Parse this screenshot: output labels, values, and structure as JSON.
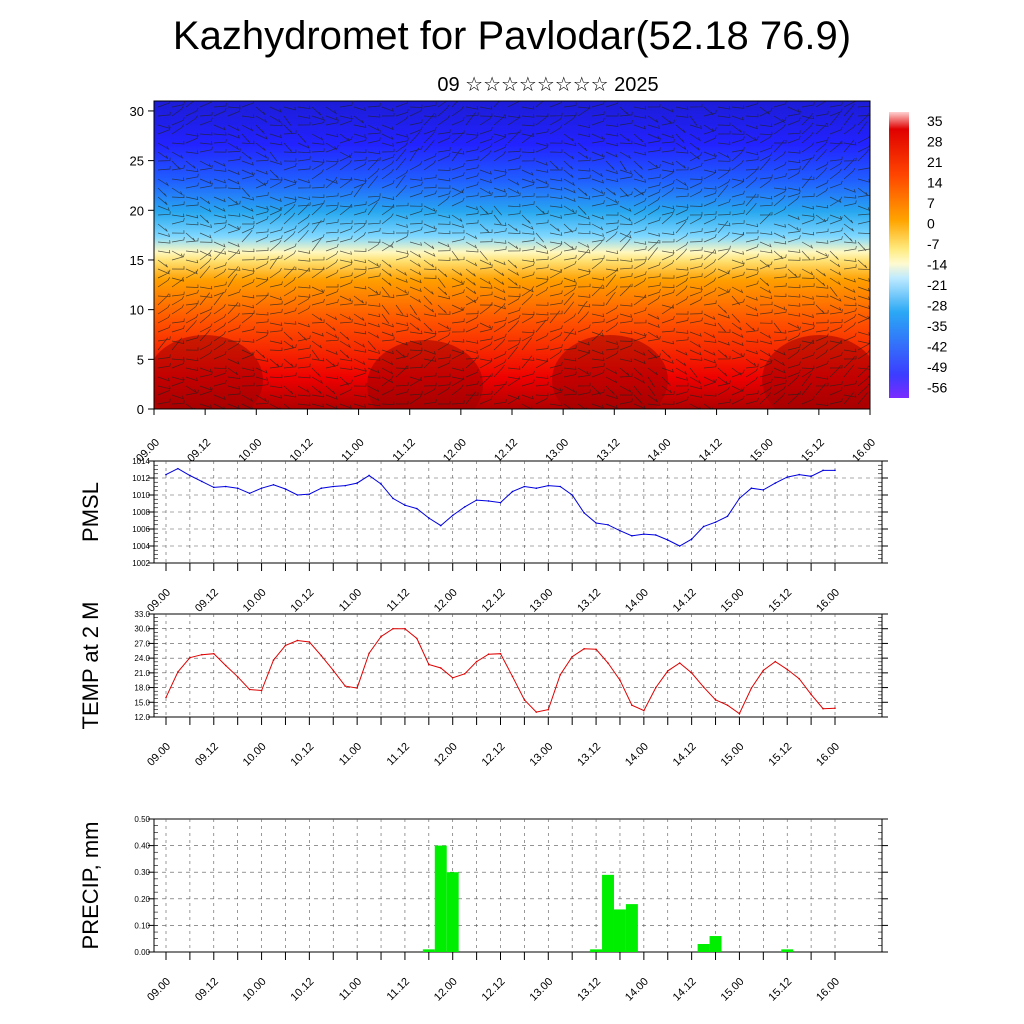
{
  "header": {
    "title": "Kazhydromet for Pavlodar(52.18 76.9)",
    "subtitle": "09 ☆☆☆☆☆☆☆☆ 2025"
  },
  "time_ticks": [
    "09.00",
    "09.12",
    "10.00",
    "10.12",
    "11.00",
    "11.12",
    "12.00",
    "12.12",
    "13.00",
    "13.12",
    "14.00",
    "14.12",
    "15.00",
    "15.12",
    "16.00"
  ],
  "colors": {
    "pmsl_line": "#0000dd",
    "temp_line": "#dd0000",
    "precip_bar": "#00ee00"
  },
  "chart_data": [
    {
      "type": "heatmap",
      "name": "cross-section",
      "x_ticks": [
        "09.00",
        "09.12",
        "10.00",
        "10.12",
        "11.00",
        "11.12",
        "12.00",
        "12.12",
        "13.00",
        "13.12",
        "14.00",
        "14.12",
        "15.00",
        "15.12",
        "16.00"
      ],
      "ylim": [
        0,
        31
      ],
      "y_ticks": [
        0,
        5,
        10,
        15,
        20,
        25,
        30
      ],
      "colorbar_labels": [
        "35",
        "28",
        "21",
        "14",
        "7",
        "0",
        "-7",
        "-14",
        "-21",
        "-28",
        "-35",
        "-42",
        "-49",
        "-56"
      ],
      "colormap": [
        "#ff0000",
        "#ffa500",
        "#ffff9a",
        "#00c8ff",
        "#3c3cff",
        "#7a2cff"
      ]
    },
    {
      "type": "line",
      "name": "PMSL",
      "ylabel": "PMSL",
      "ylim": [
        1002,
        1014
      ],
      "y_ticks": [
        "1014",
        "1012",
        "1010",
        "1008",
        "1006",
        "1004",
        "1002"
      ],
      "x_ticks": [
        "09.00",
        "09.12",
        "10.00",
        "10.12",
        "11.00",
        "11.12",
        "12.00",
        "12.12",
        "13.00",
        "13.12",
        "14.00",
        "14.12",
        "15.00",
        "15.12",
        "16.00"
      ],
      "x": [
        0,
        3,
        6,
        9,
        12,
        15,
        18,
        21,
        24,
        27,
        30,
        33,
        36,
        39,
        42,
        45,
        48,
        51,
        54,
        57,
        60,
        63,
        66,
        69,
        72,
        75,
        78,
        81,
        84,
        87,
        90,
        93,
        96,
        99,
        102,
        105,
        108,
        111,
        114,
        117,
        120,
        123,
        126,
        129,
        132,
        135,
        138,
        141,
        144,
        147,
        150,
        153,
        156,
        159,
        162,
        165,
        168
      ],
      "values": [
        1012.4,
        1013.1,
        1012.3,
        1011.6,
        1010.9,
        1011.0,
        1010.8,
        1010.2,
        1010.8,
        1011.2,
        1010.7,
        1010.0,
        1010.1,
        1010.8,
        1011.0,
        1011.1,
        1011.4,
        1012.3,
        1011.3,
        1009.6,
        1008.8,
        1008.4,
        1007.3,
        1006.4,
        1007.6,
        1008.6,
        1009.4,
        1009.3,
        1009.1,
        1010.4,
        1011.0,
        1010.8,
        1011.1,
        1011.0,
        1010.0,
        1007.9,
        1006.7,
        1006.5,
        1005.8,
        1005.2,
        1005.4,
        1005.3,
        1004.7,
        1004.0,
        1004.8,
        1006.3,
        1006.8,
        1007.5,
        1009.6,
        1010.8,
        1010.6,
        1011.4,
        1012.1,
        1012.4,
        1012.2,
        1012.9,
        1012.9
      ]
    },
    {
      "type": "line",
      "name": "TEMP at 2 M",
      "ylabel": "TEMP at 2 M",
      "ylim": [
        12,
        33
      ],
      "y_ticks": [
        "33.0",
        "30.0",
        "27.0",
        "24.0",
        "21.0",
        "18.0",
        "15.0",
        "12.0"
      ],
      "x_ticks": [
        "09.00",
        "09.12",
        "10.00",
        "10.12",
        "11.00",
        "11.12",
        "12.00",
        "12.12",
        "13.00",
        "13.12",
        "14.00",
        "14.12",
        "15.00",
        "15.12",
        "16.00"
      ],
      "x": [
        0,
        3,
        6,
        9,
        12,
        15,
        18,
        21,
        24,
        27,
        30,
        33,
        36,
        39,
        42,
        45,
        48,
        51,
        54,
        57,
        60,
        63,
        66,
        69,
        72,
        75,
        78,
        81,
        84,
        87,
        90,
        93,
        96,
        99,
        102,
        105,
        108,
        111,
        114,
        117,
        120,
        123,
        126,
        129,
        132,
        135,
        138,
        141,
        144,
        147,
        150,
        153,
        156,
        159,
        162,
        165,
        168
      ],
      "values": [
        16.0,
        21.2,
        24.1,
        24.7,
        24.9,
        22.5,
        20.2,
        17.6,
        17.4,
        23.6,
        26.6,
        27.6,
        27.3,
        24.5,
        21.5,
        18.3,
        17.9,
        25.0,
        28.4,
        30.0,
        30.0,
        28.0,
        22.7,
        22.0,
        20.0,
        20.8,
        23.3,
        24.8,
        24.9,
        20.3,
        15.5,
        13.0,
        13.5,
        20.6,
        24.3,
        25.9,
        25.8,
        23.0,
        19.5,
        14.4,
        13.3,
        18.0,
        21.4,
        23.0,
        21.0,
        18.1,
        15.5,
        14.4,
        12.7,
        17.9,
        21.5,
        23.3,
        21.7,
        19.8,
        16.6,
        13.7,
        13.8
      ]
    },
    {
      "type": "bar",
      "name": "PRECIP, mm",
      "ylabel": "PRECIP, mm",
      "ylim": [
        0,
        0.5
      ],
      "y_ticks": [
        "0.50",
        "0.40",
        "0.30",
        "0.20",
        "0.10",
        "0.00"
      ],
      "x_ticks": [
        "09.00",
        "09.12",
        "10.00",
        "10.12",
        "11.00",
        "11.12",
        "12.00",
        "12.12",
        "13.00",
        "13.12",
        "14.00",
        "14.12",
        "15.00",
        "15.12",
        "16.00"
      ],
      "bar_width_hours": 3,
      "x": [
        66,
        69,
        72,
        108,
        111,
        114,
        117,
        135,
        138,
        156
      ],
      "values": [
        0.01,
        0.4,
        0.3,
        0.01,
        0.29,
        0.16,
        0.18,
        0.03,
        0.06,
        0.01
      ]
    }
  ]
}
